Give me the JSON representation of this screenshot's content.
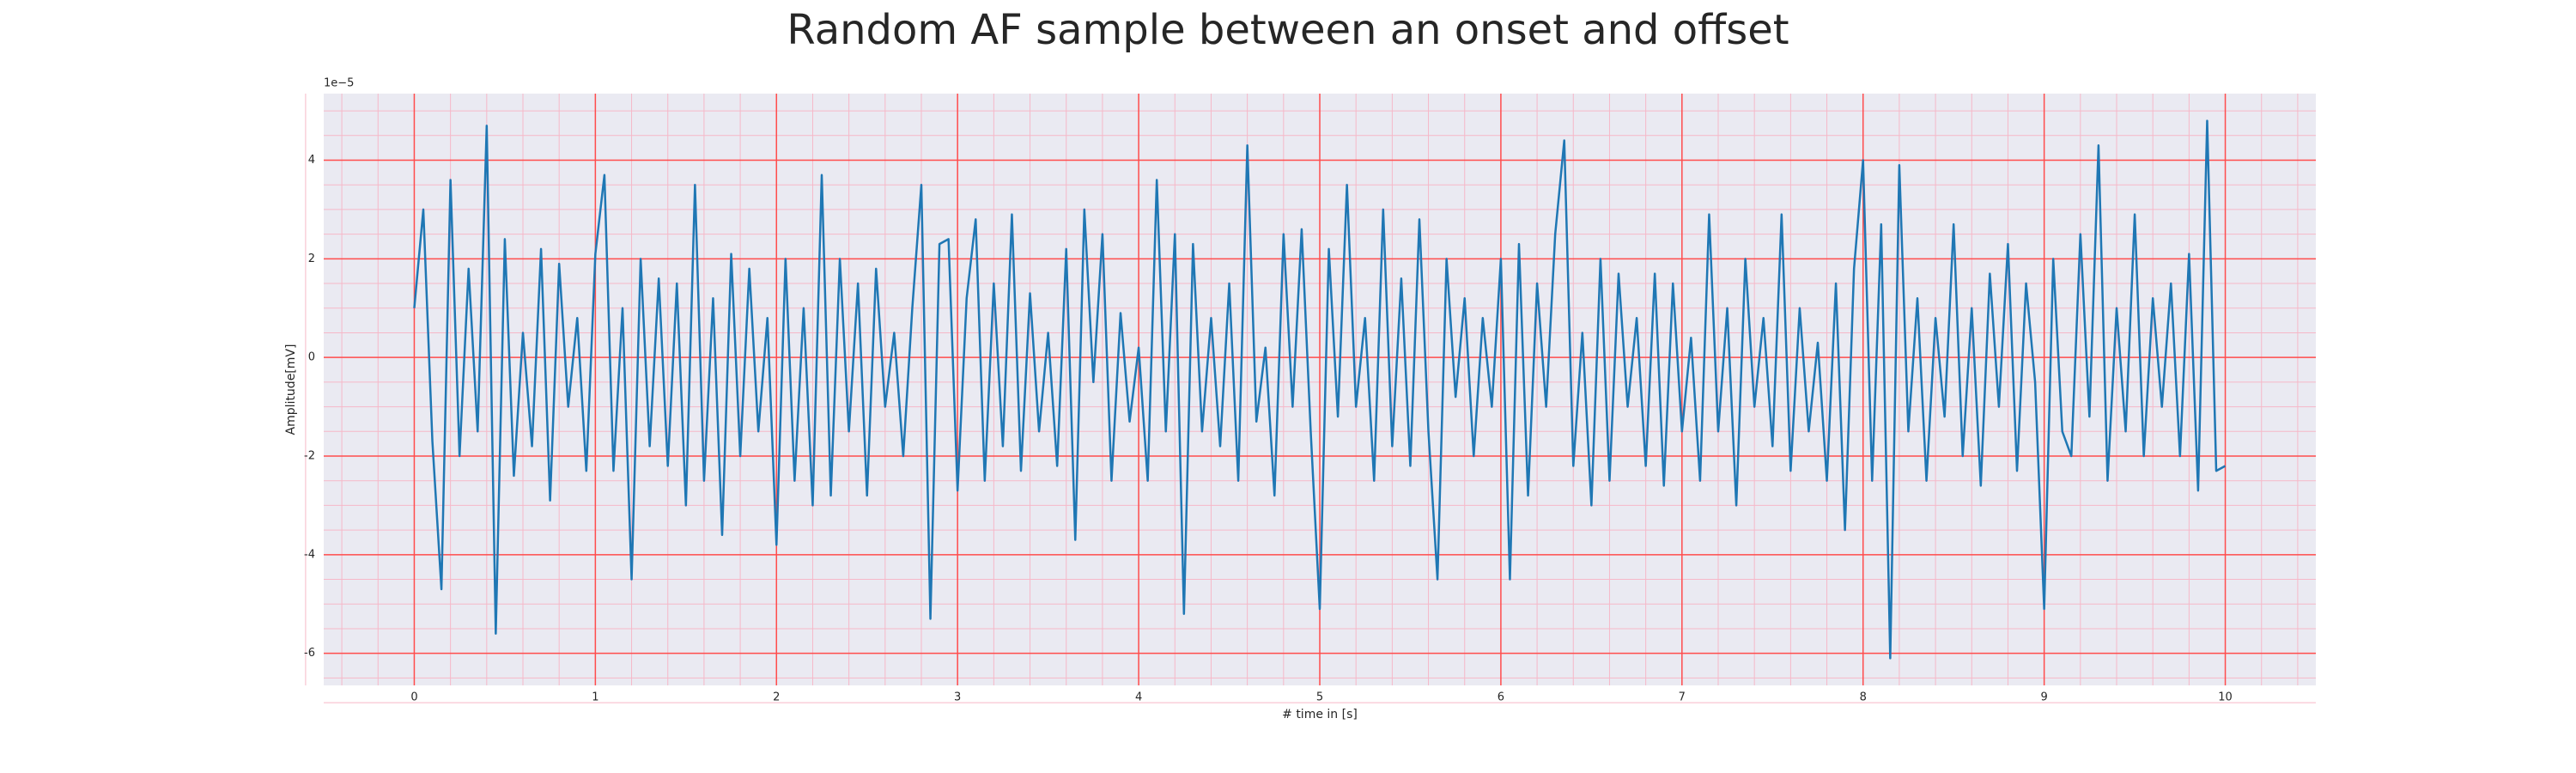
{
  "chart_data": {
    "type": "line",
    "title": "Random AF sample between an onset and offset",
    "x_label": "# time in [s]",
    "y_label": "Amplitude[mV]",
    "y_offset_label": "1e−5",
    "xlim": [
      -0.5,
      10.5
    ],
    "ylim": [
      -6.65,
      5.35
    ],
    "xticks": [
      0,
      1,
      2,
      3,
      4,
      5,
      6,
      7,
      8,
      9,
      10
    ],
    "yticks": [
      -6,
      -4,
      -2,
      0,
      2,
      4
    ],
    "grid": true,
    "grid_color": "#ff4d4d",
    "minor_grid": {
      "x_divisions": 5,
      "y_divisions": 4,
      "color": "#f6b8c8"
    },
    "background": "#eaeaf2",
    "series": [
      {
        "name": "Amplitude[mV]",
        "color": "#1f77b4",
        "x": [
          0.0,
          0.05,
          0.1,
          0.15,
          0.2,
          0.25,
          0.3,
          0.35,
          0.4,
          0.45,
          0.5,
          0.55,
          0.6,
          0.65,
          0.7,
          0.75,
          0.8,
          0.85,
          0.9,
          0.95,
          1.0,
          1.05,
          1.1,
          1.15,
          1.2,
          1.25,
          1.3,
          1.35,
          1.4,
          1.45,
          1.5,
          1.55,
          1.6,
          1.65,
          1.7,
          1.75,
          1.8,
          1.85,
          1.9,
          1.95,
          2.0,
          2.05,
          2.1,
          2.15,
          2.2,
          2.25,
          2.3,
          2.35,
          2.4,
          2.45,
          2.5,
          2.55,
          2.6,
          2.65,
          2.7,
          2.75,
          2.8,
          2.85,
          2.9,
          2.95,
          3.0,
          3.05,
          3.1,
          3.15,
          3.2,
          3.25,
          3.3,
          3.35,
          3.4,
          3.45,
          3.5,
          3.55,
          3.6,
          3.65,
          3.7,
          3.75,
          3.8,
          3.85,
          3.9,
          3.95,
          4.0,
          4.05,
          4.1,
          4.15,
          4.2,
          4.25,
          4.3,
          4.35,
          4.4,
          4.45,
          4.5,
          4.55,
          4.6,
          4.65,
          4.7,
          4.75,
          4.8,
          4.85,
          4.9,
          4.95,
          5.0,
          5.05,
          5.1,
          5.15,
          5.2,
          5.25,
          5.3,
          5.35,
          5.4,
          5.45,
          5.5,
          5.55,
          5.6,
          5.65,
          5.7,
          5.75,
          5.8,
          5.85,
          5.9,
          5.95,
          6.0,
          6.05,
          6.1,
          6.15,
          6.2,
          6.25,
          6.3,
          6.35,
          6.4,
          6.45,
          6.5,
          6.55,
          6.6,
          6.65,
          6.7,
          6.75,
          6.8,
          6.85,
          6.9,
          6.95,
          7.0,
          7.05,
          7.1,
          7.15,
          7.2,
          7.25,
          7.3,
          7.35,
          7.4,
          7.45,
          7.5,
          7.55,
          7.6,
          7.65,
          7.7,
          7.75,
          7.8,
          7.85,
          7.9,
          7.95,
          8.0,
          8.05,
          8.1,
          8.15,
          8.2,
          8.25,
          8.3,
          8.35,
          8.4,
          8.45,
          8.5,
          8.55,
          8.6,
          8.65,
          8.7,
          8.75,
          8.8,
          8.85,
          8.9,
          8.95,
          9.0,
          9.05,
          9.1,
          9.15,
          9.2,
          9.25,
          9.3,
          9.35,
          9.4,
          9.45,
          9.5,
          9.55,
          9.6,
          9.65,
          9.7,
          9.75,
          9.8,
          9.85,
          9.9,
          9.95,
          10.0
        ],
        "values": [
          1.0,
          3.0,
          -1.7,
          -4.7,
          3.6,
          -2.0,
          1.8,
          -1.5,
          4.7,
          -5.6,
          2.4,
          -2.4,
          0.5,
          -1.8,
          2.2,
          -2.9,
          1.9,
          -1.0,
          0.8,
          -2.3,
          2.1,
          3.7,
          -2.3,
          1.0,
          -4.5,
          2.0,
          -1.8,
          1.6,
          -2.2,
          1.5,
          -3.0,
          3.5,
          -2.5,
          1.2,
          -3.6,
          2.1,
          -2.0,
          1.8,
          -1.5,
          0.8,
          -3.8,
          2.0,
          -2.5,
          1.0,
          -3.0,
          3.7,
          -2.8,
          2.0,
          -1.5,
          1.5,
          -2.8,
          1.8,
          -1.0,
          0.5,
          -2.0,
          1.0,
          3.5,
          -5.3,
          2.3,
          2.4,
          -2.7,
          1.2,
          2.8,
          -2.5,
          1.5,
          -1.8,
          2.9,
          -2.3,
          1.3,
          -1.5,
          0.5,
          -2.2,
          2.2,
          -3.7,
          3.0,
          -0.5,
          2.5,
          -2.5,
          0.9,
          -1.3,
          0.2,
          -2.5,
          3.6,
          -1.5,
          2.5,
          -5.2,
          2.3,
          -1.5,
          0.8,
          -1.8,
          1.5,
          -2.5,
          4.3,
          -1.3,
          0.2,
          -2.8,
          2.5,
          -1.0,
          2.6,
          -1.5,
          -5.1,
          2.2,
          -1.2,
          3.5,
          -1.0,
          0.8,
          -2.5,
          3.0,
          -1.8,
          1.6,
          -2.2,
          2.8,
          -1.5,
          -4.5,
          2.0,
          -0.8,
          1.2,
          -2.0,
          0.8,
          -1.0,
          2.0,
          -4.5,
          2.3,
          -2.8,
          1.5,
          -1.0,
          2.5,
          4.4,
          -2.2,
          0.5,
          -3.0,
          2.0,
          -2.5,
          1.7,
          -1.0,
          0.8,
          -2.2,
          1.7,
          -2.6,
          1.5,
          -1.5,
          0.4,
          -2.5,
          2.9,
          -1.5,
          1.0,
          -3.0,
          2.0,
          -1.0,
          0.8,
          -1.8,
          2.9,
          -2.3,
          1.0,
          -1.5,
          0.3,
          -2.5,
          1.5,
          -3.5,
          1.8,
          4.0,
          -2.5,
          2.7,
          -6.1,
          3.9,
          -1.5,
          1.2,
          -2.5,
          0.8,
          -1.2,
          2.7,
          -2.0,
          1.0,
          -2.6,
          1.7,
          -1.0,
          2.3,
          -2.3,
          1.5,
          -0.5,
          -5.1,
          2.0,
          -1.5,
          -2.0,
          2.5,
          -1.2,
          4.3,
          -2.5,
          1.0,
          -1.5,
          2.9,
          -2.0,
          1.2,
          -1.0,
          1.5,
          -2.0,
          2.1,
          -2.7,
          4.8,
          -2.3,
          -2.2
        ]
      }
    ]
  }
}
